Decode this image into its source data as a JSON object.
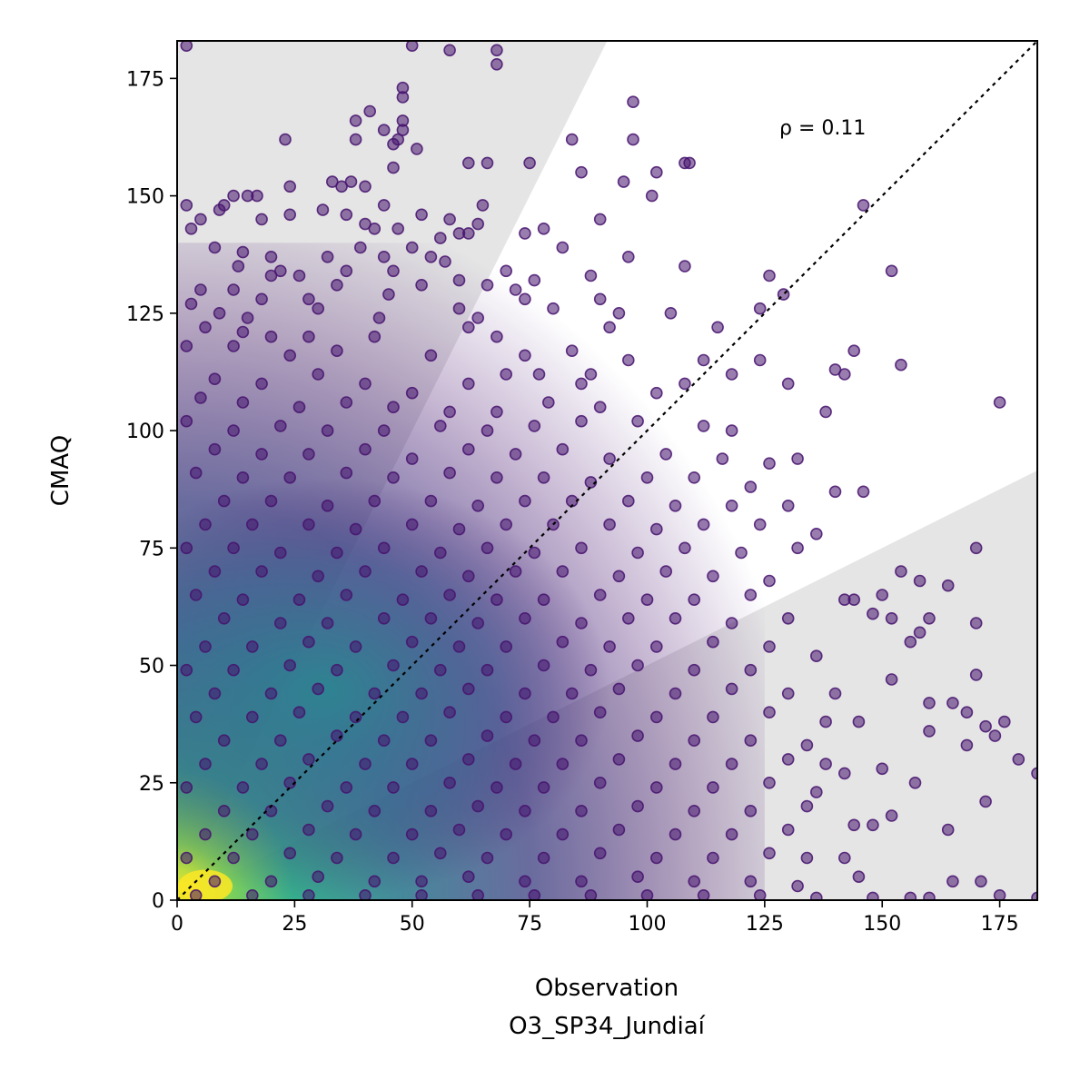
{
  "chart_data": {
    "type": "scatter",
    "title": "",
    "xlabel": "Observation",
    "xlabel_sub": "O3_SP34_Jundiaí",
    "ylabel": "CMAQ",
    "xlim": [
      0,
      183
    ],
    "ylim": [
      0,
      183
    ],
    "xticks": [
      0,
      25,
      50,
      75,
      100,
      125,
      150,
      175
    ],
    "yticks": [
      0,
      25,
      50,
      75,
      100,
      125,
      150,
      175
    ],
    "grid": false,
    "legend": "none",
    "annotation": "ρ = 0.11",
    "reference_line": {
      "type": "1:1",
      "style": "dotted",
      "color": "#000000"
    },
    "shaded_regions": [
      {
        "description": "upper band: y greater than 2x",
        "color": "#e5e5e5"
      },
      {
        "description": "lower band: y less than x/2",
        "color": "#e5e5e5"
      }
    ],
    "colormap": "viridis",
    "marker_color": "#46136e",
    "points": [
      [
        2,
        182
      ],
      [
        58,
        181
      ],
      [
        68,
        181
      ],
      [
        68,
        178
      ],
      [
        50,
        182
      ],
      [
        48,
        173
      ],
      [
        48,
        171
      ],
      [
        97,
        170
      ],
      [
        41,
        168
      ],
      [
        48,
        166
      ],
      [
        48,
        164
      ],
      [
        47,
        162
      ],
      [
        38,
        166
      ],
      [
        44,
        164
      ],
      [
        38,
        162
      ],
      [
        23,
        162
      ],
      [
        97,
        162
      ],
      [
        84,
        162
      ],
      [
        46,
        161
      ],
      [
        51,
        160
      ],
      [
        62,
        157
      ],
      [
        75,
        157
      ],
      [
        66,
        157
      ],
      [
        108,
        157
      ],
      [
        109,
        157
      ],
      [
        102,
        155
      ],
      [
        46,
        156
      ],
      [
        86,
        155
      ],
      [
        33,
        153
      ],
      [
        35,
        152
      ],
      [
        37,
        153
      ],
      [
        40,
        152
      ],
      [
        24,
        152
      ],
      [
        95,
        153
      ],
      [
        101,
        150
      ],
      [
        146,
        148
      ],
      [
        15,
        150
      ],
      [
        17,
        150
      ],
      [
        12,
        150
      ],
      [
        10,
        148
      ],
      [
        9,
        147
      ],
      [
        18,
        145
      ],
      [
        5,
        145
      ],
      [
        24,
        146
      ],
      [
        44,
        148
      ],
      [
        52,
        146
      ],
      [
        58,
        145
      ],
      [
        65,
        148
      ],
      [
        74,
        142
      ],
      [
        90,
        145
      ],
      [
        2,
        148
      ],
      [
        31,
        147
      ],
      [
        36,
        146
      ],
      [
        3,
        143
      ],
      [
        62,
        142
      ],
      [
        64,
        144
      ],
      [
        40,
        144
      ],
      [
        42,
        143
      ],
      [
        47,
        143
      ],
      [
        56,
        141
      ],
      [
        60,
        142
      ],
      [
        78,
        143
      ],
      [
        82,
        139
      ],
      [
        8,
        139
      ],
      [
        14,
        138
      ],
      [
        20,
        137
      ],
      [
        32,
        137
      ],
      [
        39,
        139
      ],
      [
        44,
        137
      ],
      [
        50,
        139
      ],
      [
        54,
        137
      ],
      [
        13,
        135
      ],
      [
        20,
        133
      ],
      [
        22,
        134
      ],
      [
        26,
        133
      ],
      [
        36,
        134
      ],
      [
        46,
        134
      ],
      [
        57,
        136
      ],
      [
        96,
        137
      ],
      [
        34,
        131
      ],
      [
        52,
        131
      ],
      [
        60,
        132
      ],
      [
        70,
        134
      ],
      [
        76,
        132
      ],
      [
        88,
        133
      ],
      [
        108,
        135
      ],
      [
        152,
        134
      ],
      [
        5,
        130
      ],
      [
        12,
        130
      ],
      [
        18,
        128
      ],
      [
        28,
        128
      ],
      [
        45,
        129
      ],
      [
        66,
        131
      ],
      [
        72,
        130
      ],
      [
        74,
        128
      ],
      [
        80,
        126
      ],
      [
        90,
        128
      ],
      [
        126,
        133
      ],
      [
        129,
        129
      ],
      [
        3,
        127
      ],
      [
        9,
        125
      ],
      [
        15,
        124
      ],
      [
        30,
        126
      ],
      [
        43,
        124
      ],
      [
        60,
        126
      ],
      [
        64,
        124
      ],
      [
        94,
        125
      ],
      [
        105,
        125
      ],
      [
        124,
        126
      ],
      [
        6,
        122
      ],
      [
        14,
        121
      ],
      [
        20,
        120
      ],
      [
        28,
        120
      ],
      [
        42,
        120
      ],
      [
        62,
        122
      ],
      [
        68,
        120
      ],
      [
        92,
        122
      ],
      [
        115,
        122
      ],
      [
        144,
        117
      ],
      [
        2,
        118
      ],
      [
        12,
        118
      ],
      [
        24,
        116
      ],
      [
        34,
        117
      ],
      [
        54,
        116
      ],
      [
        74,
        116
      ],
      [
        84,
        117
      ],
      [
        70,
        112
      ],
      [
        88,
        112
      ],
      [
        96,
        115
      ],
      [
        112,
        115
      ],
      [
        124,
        115
      ],
      [
        154,
        114
      ],
      [
        8,
        111
      ],
      [
        18,
        110
      ],
      [
        30,
        112
      ],
      [
        40,
        110
      ],
      [
        50,
        108
      ],
      [
        62,
        110
      ],
      [
        77,
        112
      ],
      [
        86,
        110
      ],
      [
        108,
        110
      ],
      [
        118,
        112
      ],
      [
        140,
        113
      ],
      [
        142,
        112
      ],
      [
        5,
        107
      ],
      [
        14,
        106
      ],
      [
        26,
        105
      ],
      [
        36,
        106
      ],
      [
        46,
        105
      ],
      [
        58,
        104
      ],
      [
        68,
        104
      ],
      [
        79,
        106
      ],
      [
        90,
        105
      ],
      [
        102,
        108
      ],
      [
        130,
        110
      ],
      [
        138,
        104
      ],
      [
        175,
        106
      ],
      [
        2,
        102
      ],
      [
        12,
        100
      ],
      [
        22,
        101
      ],
      [
        32,
        100
      ],
      [
        44,
        100
      ],
      [
        56,
        101
      ],
      [
        66,
        100
      ],
      [
        76,
        101
      ],
      [
        86,
        102
      ],
      [
        98,
        102
      ],
      [
        112,
        101
      ],
      [
        118,
        100
      ],
      [
        8,
        96
      ],
      [
        18,
        95
      ],
      [
        28,
        95
      ],
      [
        40,
        96
      ],
      [
        50,
        94
      ],
      [
        62,
        96
      ],
      [
        72,
        95
      ],
      [
        82,
        96
      ],
      [
        92,
        94
      ],
      [
        104,
        95
      ],
      [
        116,
        94
      ],
      [
        126,
        93
      ],
      [
        132,
        94
      ],
      [
        4,
        91
      ],
      [
        14,
        90
      ],
      [
        24,
        90
      ],
      [
        36,
        91
      ],
      [
        46,
        90
      ],
      [
        58,
        91
      ],
      [
        68,
        90
      ],
      [
        78,
        90
      ],
      [
        88,
        89
      ],
      [
        100,
        90
      ],
      [
        110,
        90
      ],
      [
        122,
        88
      ],
      [
        140,
        87
      ],
      [
        146,
        87
      ],
      [
        10,
        85
      ],
      [
        20,
        85
      ],
      [
        32,
        84
      ],
      [
        42,
        85
      ],
      [
        54,
        85
      ],
      [
        64,
        84
      ],
      [
        74,
        85
      ],
      [
        84,
        85
      ],
      [
        96,
        85
      ],
      [
        106,
        84
      ],
      [
        118,
        84
      ],
      [
        130,
        84
      ],
      [
        6,
        80
      ],
      [
        16,
        80
      ],
      [
        28,
        80
      ],
      [
        38,
        79
      ],
      [
        50,
        80
      ],
      [
        60,
        79
      ],
      [
        70,
        80
      ],
      [
        80,
        80
      ],
      [
        92,
        80
      ],
      [
        102,
        79
      ],
      [
        112,
        80
      ],
      [
        124,
        80
      ],
      [
        136,
        78
      ],
      [
        2,
        75
      ],
      [
        12,
        75
      ],
      [
        22,
        74
      ],
      [
        34,
        74
      ],
      [
        44,
        75
      ],
      [
        56,
        74
      ],
      [
        66,
        75
      ],
      [
        76,
        74
      ],
      [
        86,
        75
      ],
      [
        98,
        74
      ],
      [
        108,
        75
      ],
      [
        120,
        74
      ],
      [
        132,
        75
      ],
      [
        170,
        75
      ],
      [
        8,
        70
      ],
      [
        18,
        70
      ],
      [
        30,
        69
      ],
      [
        40,
        70
      ],
      [
        52,
        70
      ],
      [
        62,
        69
      ],
      [
        72,
        70
      ],
      [
        82,
        70
      ],
      [
        94,
        69
      ],
      [
        104,
        70
      ],
      [
        114,
        69
      ],
      [
        126,
        68
      ],
      [
        154,
        70
      ],
      [
        158,
        68
      ],
      [
        4,
        65
      ],
      [
        14,
        64
      ],
      [
        26,
        64
      ],
      [
        36,
        65
      ],
      [
        48,
        64
      ],
      [
        58,
        65
      ],
      [
        68,
        64
      ],
      [
        78,
        64
      ],
      [
        90,
        65
      ],
      [
        100,
        64
      ],
      [
        110,
        64
      ],
      [
        122,
        65
      ],
      [
        142,
        64
      ],
      [
        144,
        64
      ],
      [
        150,
        65
      ],
      [
        160,
        60
      ],
      [
        164,
        67
      ],
      [
        10,
        60
      ],
      [
        22,
        59
      ],
      [
        32,
        59
      ],
      [
        44,
        60
      ],
      [
        54,
        60
      ],
      [
        64,
        59
      ],
      [
        74,
        60
      ],
      [
        86,
        59
      ],
      [
        96,
        60
      ],
      [
        106,
        60
      ],
      [
        118,
        59
      ],
      [
        130,
        60
      ],
      [
        148,
        61
      ],
      [
        152,
        60
      ],
      [
        170,
        59
      ],
      [
        6,
        54
      ],
      [
        16,
        54
      ],
      [
        28,
        55
      ],
      [
        38,
        54
      ],
      [
        50,
        55
      ],
      [
        60,
        54
      ],
      [
        70,
        54
      ],
      [
        82,
        55
      ],
      [
        92,
        54
      ],
      [
        102,
        54
      ],
      [
        114,
        55
      ],
      [
        126,
        54
      ],
      [
        156,
        55
      ],
      [
        158,
        57
      ],
      [
        2,
        49
      ],
      [
        12,
        49
      ],
      [
        24,
        50
      ],
      [
        34,
        49
      ],
      [
        46,
        50
      ],
      [
        56,
        49
      ],
      [
        66,
        49
      ],
      [
        78,
        50
      ],
      [
        88,
        49
      ],
      [
        98,
        50
      ],
      [
        110,
        49
      ],
      [
        122,
        49
      ],
      [
        136,
        52
      ],
      [
        152,
        47
      ],
      [
        170,
        48
      ],
      [
        8,
        44
      ],
      [
        20,
        44
      ],
      [
        30,
        45
      ],
      [
        42,
        44
      ],
      [
        52,
        44
      ],
      [
        62,
        45
      ],
      [
        74,
        44
      ],
      [
        84,
        44
      ],
      [
        94,
        45
      ],
      [
        106,
        44
      ],
      [
        118,
        45
      ],
      [
        130,
        44
      ],
      [
        140,
        44
      ],
      [
        160,
        42
      ],
      [
        165,
        42
      ],
      [
        4,
        39
      ],
      [
        16,
        39
      ],
      [
        26,
        40
      ],
      [
        38,
        39
      ],
      [
        48,
        39
      ],
      [
        58,
        40
      ],
      [
        70,
        39
      ],
      [
        80,
        39
      ],
      [
        90,
        40
      ],
      [
        102,
        39
      ],
      [
        114,
        39
      ],
      [
        126,
        40
      ],
      [
        138,
        38
      ],
      [
        145,
        38
      ],
      [
        168,
        40
      ],
      [
        172,
        37
      ],
      [
        176,
        38
      ],
      [
        10,
        34
      ],
      [
        22,
        34
      ],
      [
        34,
        35
      ],
      [
        44,
        34
      ],
      [
        54,
        34
      ],
      [
        66,
        35
      ],
      [
        76,
        34
      ],
      [
        86,
        34
      ],
      [
        98,
        35
      ],
      [
        110,
        34
      ],
      [
        122,
        34
      ],
      [
        134,
        33
      ],
      [
        160,
        36
      ],
      [
        168,
        33
      ],
      [
        174,
        35
      ],
      [
        6,
        29
      ],
      [
        18,
        29
      ],
      [
        28,
        30
      ],
      [
        40,
        29
      ],
      [
        50,
        29
      ],
      [
        62,
        30
      ],
      [
        72,
        29
      ],
      [
        82,
        29
      ],
      [
        94,
        30
      ],
      [
        106,
        29
      ],
      [
        118,
        29
      ],
      [
        130,
        30
      ],
      [
        138,
        29
      ],
      [
        142,
        27
      ],
      [
        150,
        28
      ],
      [
        179,
        30
      ],
      [
        2,
        24
      ],
      [
        14,
        24
      ],
      [
        24,
        25
      ],
      [
        36,
        24
      ],
      [
        46,
        24
      ],
      [
        58,
        25
      ],
      [
        68,
        24
      ],
      [
        78,
        24
      ],
      [
        90,
        25
      ],
      [
        102,
        24
      ],
      [
        114,
        24
      ],
      [
        126,
        25
      ],
      [
        136,
        23
      ],
      [
        157,
        25
      ],
      [
        183,
        27
      ],
      [
        10,
        19
      ],
      [
        20,
        19
      ],
      [
        32,
        20
      ],
      [
        42,
        19
      ],
      [
        54,
        19
      ],
      [
        64,
        20
      ],
      [
        74,
        19
      ],
      [
        86,
        19
      ],
      [
        98,
        20
      ],
      [
        110,
        19
      ],
      [
        122,
        19
      ],
      [
        134,
        20
      ],
      [
        152,
        18
      ],
      [
        172,
        21
      ],
      [
        6,
        14
      ],
      [
        16,
        14
      ],
      [
        28,
        15
      ],
      [
        38,
        14
      ],
      [
        50,
        14
      ],
      [
        60,
        15
      ],
      [
        70,
        14
      ],
      [
        82,
        14
      ],
      [
        94,
        15
      ],
      [
        106,
        14
      ],
      [
        118,
        14
      ],
      [
        130,
        15
      ],
      [
        144,
        16
      ],
      [
        148,
        16
      ],
      [
        164,
        15
      ],
      [
        2,
        9
      ],
      [
        12,
        9
      ],
      [
        24,
        10
      ],
      [
        34,
        9
      ],
      [
        46,
        9
      ],
      [
        56,
        10
      ],
      [
        66,
        9
      ],
      [
        78,
        9
      ],
      [
        90,
        10
      ],
      [
        102,
        9
      ],
      [
        114,
        9
      ],
      [
        126,
        10
      ],
      [
        134,
        9
      ],
      [
        142,
        9
      ],
      [
        8,
        4
      ],
      [
        20,
        4
      ],
      [
        30,
        5
      ],
      [
        42,
        4
      ],
      [
        52,
        4
      ],
      [
        62,
        5
      ],
      [
        74,
        4
      ],
      [
        86,
        4
      ],
      [
        98,
        5
      ],
      [
        110,
        4
      ],
      [
        122,
        4
      ],
      [
        132,
        3
      ],
      [
        145,
        5
      ],
      [
        165,
        4
      ],
      [
        171,
        4
      ],
      [
        4,
        1
      ],
      [
        16,
        1
      ],
      [
        28,
        1
      ],
      [
        40,
        1
      ],
      [
        52,
        1
      ],
      [
        64,
        1
      ],
      [
        76,
        1
      ],
      [
        88,
        1
      ],
      [
        100,
        1
      ],
      [
        112,
        1
      ],
      [
        124,
        1
      ],
      [
        136,
        0.5
      ],
      [
        148,
        0.5
      ],
      [
        156,
        0.5
      ],
      [
        160,
        0.5
      ],
      [
        175,
        1
      ],
      [
        183,
        0.5
      ]
    ],
    "density_peak": [
      6,
      3
    ]
  }
}
